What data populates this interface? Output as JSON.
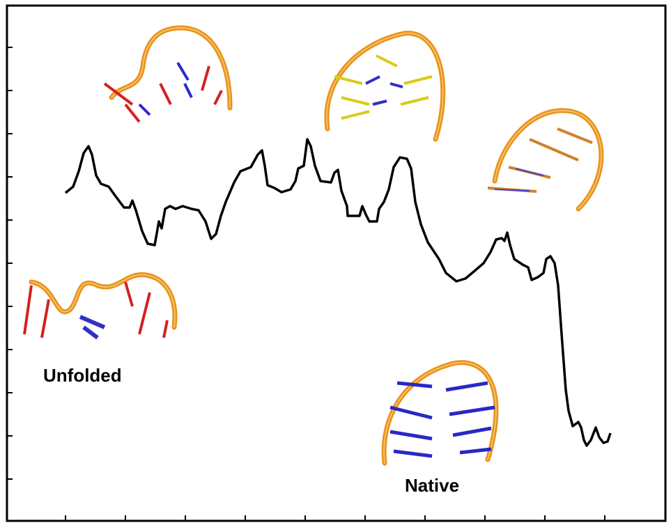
{
  "labels": {
    "unfolded": "Unfolded",
    "native": "Native"
  }
}
